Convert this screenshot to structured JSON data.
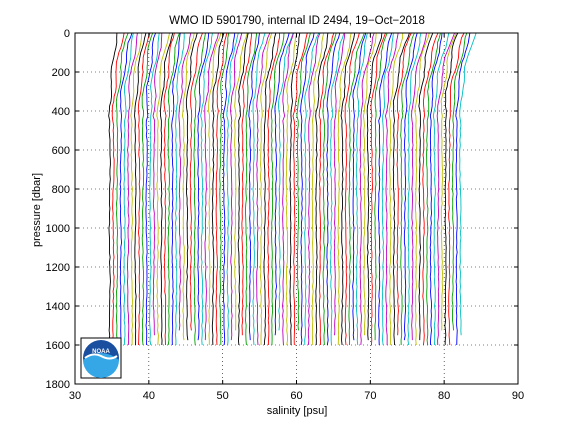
{
  "chart_data": {
    "type": "line",
    "title": "WMO ID 5901790, internal ID 2494, 19−Oct−2018",
    "xlabel": "salinity [psu]",
    "ylabel": "pressure [dbar]",
    "xlim": [
      30,
      90
    ],
    "ylim": [
      0,
      1800
    ],
    "y_reversed": true,
    "x_ticks": [
      30,
      40,
      50,
      60,
      70,
      80,
      90
    ],
    "y_ticks": [
      0,
      200,
      400,
      600,
      800,
      1000,
      1200,
      1400,
      1600,
      1800
    ],
    "grid": "dotted",
    "profiles": {
      "count": 96,
      "first_offset_salinity": 34.7,
      "offset_step": 0.5,
      "pressure_range": [
        0,
        1600
      ],
      "description": "stacked salinity profiles, each shifted by a constant offset"
    },
    "colors": [
      "#000000",
      "#ff0000",
      "#00a000",
      "#0000ff",
      "#00bfbf",
      "#bf00bf",
      "#bfbf00"
    ],
    "logo": {
      "name": "noaa-logo",
      "text": "NOAA"
    }
  }
}
